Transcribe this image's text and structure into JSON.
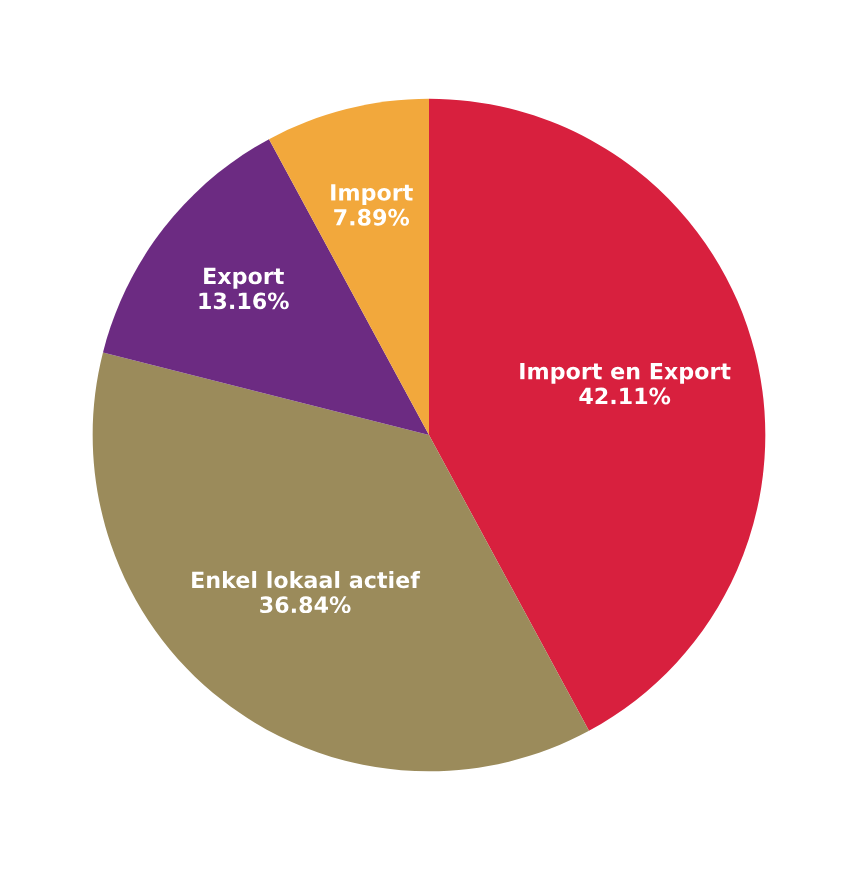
{
  "chart_data": {
    "type": "pie",
    "categories": [
      "Import en Export",
      "Enkel lokaal actief",
      "Export",
      "Import"
    ],
    "values": [
      42.11,
      36.84,
      13.16,
      7.89
    ],
    "value_labels": [
      "42.11%",
      "36.84%",
      "13.16%",
      "7.89%"
    ],
    "colors": [
      "#d8203e",
      "#9b8b5b",
      "#6c2b82",
      "#f2a83c"
    ]
  }
}
